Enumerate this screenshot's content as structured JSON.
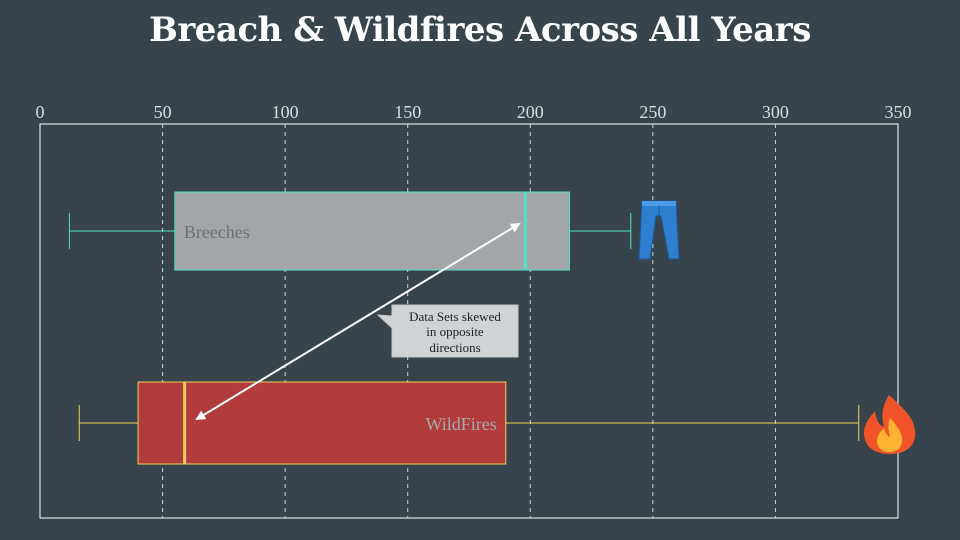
{
  "title": "Breach & Wildfires Across All Years",
  "chart_data": {
    "type": "boxplot",
    "title": "Breach & Wildfires Across All Years",
    "x_ticks": [
      0,
      50,
      100,
      150,
      200,
      250,
      300,
      350
    ],
    "xlim": [
      0,
      350
    ],
    "grid": true,
    "series": [
      {
        "name": "Breeches",
        "min": 12,
        "q1": 55,
        "median": 198,
        "q3": 216,
        "max": 241,
        "icon": "jeans-icon",
        "colors": {
          "box": "#a3a6a8",
          "border": "#52e0c4",
          "whisker": "#52e0c4",
          "median": "#52e0c4",
          "label": "#65707a"
        }
      },
      {
        "name": "WildFires",
        "min": 16,
        "q1": 40,
        "median": 59,
        "q3": 190,
        "max": 334,
        "icon": "fire-icon",
        "colors": {
          "box": "#b23c3c",
          "border": "#f2cf5a",
          "whisker": "#f2cf5a",
          "median": "#f2cf5a",
          "label": "#a8a8a8"
        }
      }
    ],
    "annotation": {
      "text_lines": [
        "Data Sets skewed",
        "in opposite",
        "directions"
      ]
    }
  }
}
